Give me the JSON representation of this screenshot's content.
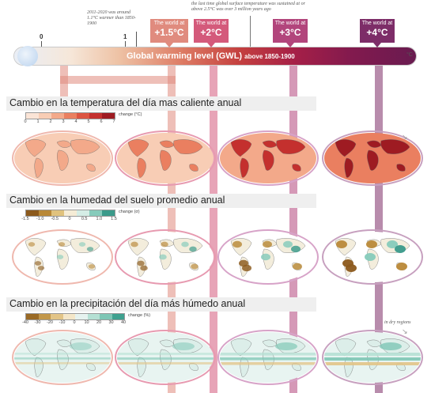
{
  "header": {
    "note_left": "2011-2020 was around 1.1°C warmer than 1850-1900",
    "note_top": "the last time global surface temperature was sustained at or above 2.5°C was over 3 million years ago",
    "scale_zero": "0",
    "scale_one": "1",
    "bar_title": "Global warming level (GWL)",
    "bar_subtitle": "above 1850-1900",
    "bar_unit": "°C",
    "scenarios": [
      {
        "label": "The world at",
        "value": "+1.5°C",
        "color": "#e08b7e"
      },
      {
        "label": "The world at",
        "value": "+2°C",
        "color": "#d45a7b"
      },
      {
        "label": "The world at",
        "value": "+3°C",
        "color": "#b2457c"
      },
      {
        "label": "The world at",
        "value": "+4°C",
        "color": "#7d2d68"
      }
    ]
  },
  "sections": [
    {
      "title": "Cambio en la temperatura del día mas caliente anual",
      "unit": "change (°C)",
      "ticks": [
        "0",
        "1",
        "2",
        "3",
        "4",
        "5",
        "6",
        "7"
      ],
      "colors": [
        "#fbe4d6",
        "#f8cdb5",
        "#f3a98a",
        "#ea7f60",
        "#dc5542",
        "#c4302e",
        "#9e1b22"
      ],
      "theme": "heat",
      "levels": [
        0.3,
        0.45,
        0.75,
        1.0
      ]
    },
    {
      "title": "Cambio en la humedad del suelo promedio anual",
      "unit": "change (σ)",
      "ticks": [
        "-1.5",
        "-1.0",
        "-0.5",
        "0",
        "0.5",
        "1.0",
        "1.5"
      ],
      "colors": [
        "#8c5a1c",
        "#b98938",
        "#e0c27d",
        "#f5ecd6",
        "#d5ede6",
        "#86cbbb",
        "#3a9a8a"
      ],
      "theme": "soil",
      "levels": [
        0.3,
        0.45,
        0.75,
        1.0
      ]
    },
    {
      "title": "Cambio en la precipitación del día más húmedo anual",
      "unit": "change (%)",
      "ticks": [
        "-40",
        "-30",
        "-20",
        "-10",
        "0",
        "10",
        "20",
        "30",
        "40"
      ],
      "colors": [
        "#9a6a25",
        "#c2974a",
        "#e2c487",
        "#f4e6c8",
        "#e6f2ef",
        "#b5e0d4",
        "#7ec6b5",
        "#3fa18f"
      ],
      "theme": "precip",
      "levels": [
        0.3,
        0.45,
        0.75,
        1.0
      ]
    }
  ],
  "side_note": "in dry regions"
}
